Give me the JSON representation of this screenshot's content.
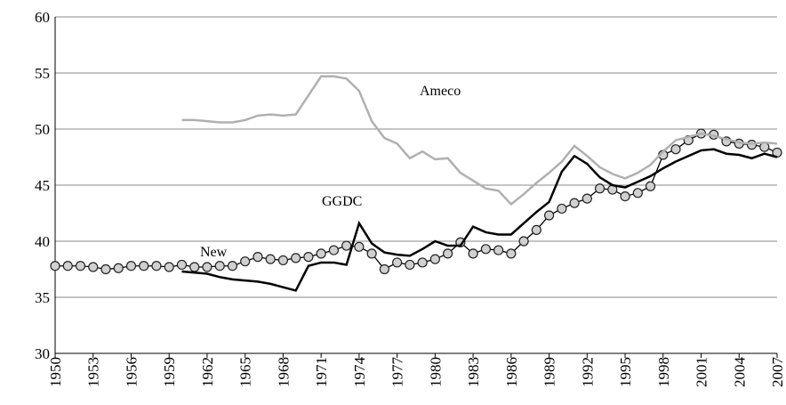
{
  "chart_data": {
    "type": "line",
    "x": [
      1950,
      1951,
      1952,
      1953,
      1954,
      1955,
      1956,
      1957,
      1958,
      1959,
      1960,
      1961,
      1962,
      1963,
      1964,
      1965,
      1966,
      1967,
      1968,
      1969,
      1970,
      1971,
      1972,
      1973,
      1974,
      1975,
      1976,
      1977,
      1978,
      1979,
      1980,
      1981,
      1982,
      1983,
      1984,
      1985,
      1986,
      1987,
      1988,
      1989,
      1990,
      1991,
      1992,
      1993,
      1994,
      1995,
      1996,
      1997,
      1998,
      1999,
      2000,
      2001,
      2002,
      2003,
      2004,
      2005,
      2006,
      2007
    ],
    "series": [
      {
        "name": "New",
        "color": "#000000",
        "marker": "circle",
        "values": [
          37.8,
          37.8,
          37.8,
          37.7,
          37.5,
          37.6,
          37.8,
          37.8,
          37.8,
          37.7,
          37.9,
          37.7,
          37.7,
          37.8,
          37.8,
          38.2,
          38.6,
          38.4,
          38.3,
          38.5,
          38.6,
          38.9,
          39.2,
          39.6,
          39.5,
          38.9,
          37.5,
          38.1,
          37.9,
          38.1,
          38.4,
          38.9,
          39.9,
          38.9,
          39.3,
          39.2,
          38.9,
          40.0,
          41.0,
          42.3,
          42.9,
          43.4,
          43.8,
          44.7,
          44.6,
          44.0,
          44.3,
          44.9,
          47.7,
          48.2,
          49.0,
          49.6,
          49.5,
          48.9,
          48.7,
          48.6,
          48.4,
          47.9
        ]
      },
      {
        "name": "GGDC",
        "color": "#000000",
        "values": [
          null,
          null,
          null,
          null,
          null,
          null,
          null,
          null,
          null,
          null,
          37.3,
          37.2,
          37.1,
          36.8,
          36.6,
          36.5,
          36.4,
          36.2,
          35.9,
          35.6,
          37.8,
          38.1,
          38.1,
          37.9,
          41.6,
          39.8,
          39.0,
          38.8,
          38.7,
          39.3,
          40.0,
          39.6,
          39.6,
          41.3,
          40.8,
          40.6,
          40.6,
          41.6,
          42.6,
          43.5,
          46.2,
          47.6,
          46.9,
          45.7,
          45.0,
          44.8,
          45.3,
          45.8,
          46.5,
          47.1,
          47.6,
          48.1,
          48.2,
          47.8,
          47.7,
          47.4,
          47.8,
          47.5
        ]
      },
      {
        "name": "Ameco",
        "color": "#b0b0b0",
        "values": [
          null,
          null,
          null,
          null,
          null,
          null,
          null,
          null,
          null,
          null,
          50.8,
          50.8,
          50.7,
          50.6,
          50.6,
          50.8,
          51.2,
          51.3,
          51.2,
          51.3,
          53.0,
          54.7,
          54.7,
          54.5,
          53.4,
          50.7,
          49.2,
          48.7,
          47.4,
          48.0,
          47.3,
          47.4,
          46.1,
          45.4,
          44.7,
          44.5,
          43.3,
          44.2,
          45.2,
          46.1,
          47.1,
          48.5,
          47.6,
          46.6,
          46.0,
          45.6,
          46.1,
          46.8,
          48.0,
          49.0,
          49.3,
          49.6,
          49.4,
          49.1,
          48.8,
          48.7,
          48.8,
          48.7
        ]
      }
    ],
    "xlim": [
      1950,
      2007
    ],
    "xticks": [
      1950,
      1953,
      1956,
      1959,
      1962,
      1965,
      1968,
      1971,
      1974,
      1977,
      1980,
      1983,
      1986,
      1989,
      1992,
      1995,
      1998,
      2001,
      2004,
      2007
    ],
    "ylim": [
      30,
      60
    ],
    "yticks": [
      30,
      35,
      40,
      45,
      50,
      55,
      60
    ],
    "grid": true
  }
}
